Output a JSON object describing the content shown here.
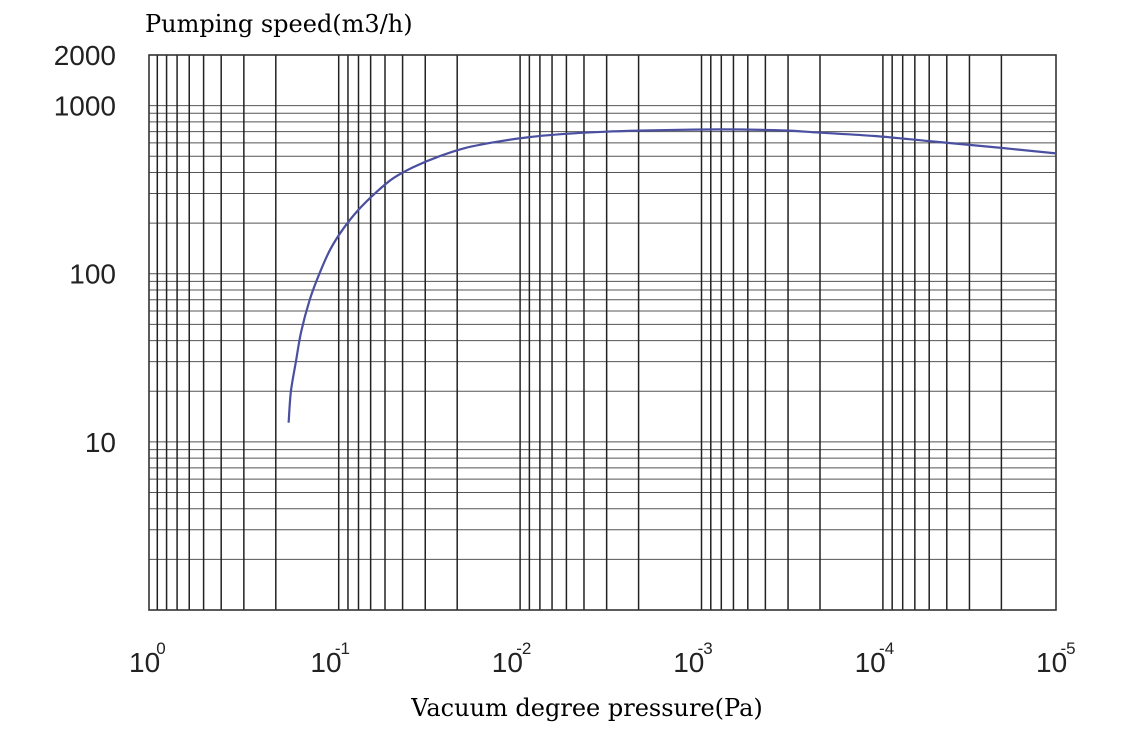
{
  "chart_data": {
    "type": "line",
    "ylabel": "Pumping speed(m3/h)",
    "xlabel": "Vacuum degree pressure(Pa)",
    "x_scale": "log",
    "x_reversed": true,
    "y_scale": "log",
    "xlim": [
      1,
      1e-05
    ],
    "ylim": [
      1,
      2000
    ],
    "grid": true,
    "y_ticks": [
      {
        "value": 2000,
        "label": "2000"
      },
      {
        "value": 1000,
        "label": "1000"
      },
      {
        "value": 100,
        "label": "100"
      },
      {
        "value": 10,
        "label": "10"
      }
    ],
    "x_ticks": [
      {
        "value": 1,
        "base": "10",
        "exp": "0"
      },
      {
        "value": 0.1,
        "base": "10",
        "exp": "-1"
      },
      {
        "value": 0.01,
        "base": "10",
        "exp": "-2"
      },
      {
        "value": 0.001,
        "base": "10",
        "exp": "-3"
      },
      {
        "value": 0.0001,
        "base": "10",
        "exp": "-4"
      },
      {
        "value": 1e-05,
        "base": "10",
        "exp": "-5"
      }
    ],
    "series": [
      {
        "color": "#4a4fa0",
        "x": [
          0.17,
          0.165,
          0.155,
          0.145,
          0.13,
          0.115,
          0.1,
          0.085,
          0.07,
          0.055,
          0.045,
          0.035,
          0.025,
          0.018,
          0.012,
          0.008,
          0.005,
          0.003,
          0.002,
          0.001,
          0.0007,
          0.0005,
          0.0003,
          0.0002,
          0.0001,
          5e-05,
          2e-05,
          1e-05
        ],
        "y": [
          13,
          20,
          30,
          45,
          70,
          100,
          140,
          185,
          240,
          310,
          370,
          430,
          500,
          560,
          610,
          650,
          680,
          700,
          710,
          720,
          722,
          720,
          710,
          690,
          660,
          615,
          560,
          520
        ]
      }
    ]
  }
}
